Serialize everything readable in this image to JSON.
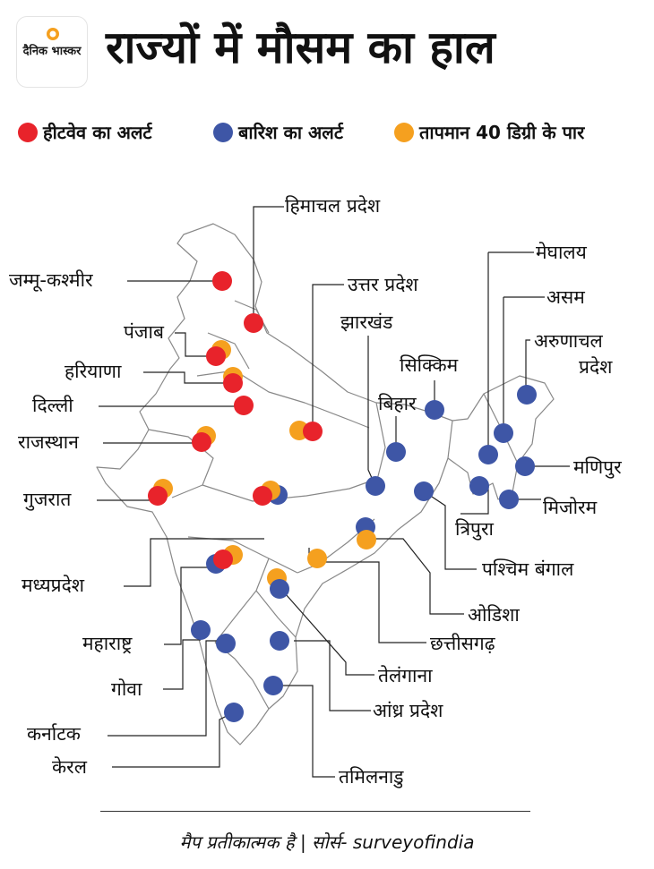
{
  "brand": {
    "logo_text": "दैनिक भास्कर"
  },
  "title": "राज्यों में मौसम का हाल",
  "colors": {
    "heatwave": "#e8232b",
    "rain": "#3e56a6",
    "temp40": "#f5a01f"
  },
  "legend": {
    "heatwave": "हीटवेव का अलर्ट",
    "rain": "बारिश का अलर्ट",
    "temp40": "तापमान 40 डिग्री के पार"
  },
  "states": {
    "himachal": {
      "name": "हिमाचल प्रदेश",
      "alerts": [
        "heatwave"
      ]
    },
    "jk": {
      "name": "जम्मू-कश्मीर",
      "alerts": [
        "heatwave"
      ]
    },
    "punjab": {
      "name": "पंजाब",
      "alerts": [
        "heatwave",
        "temp40"
      ]
    },
    "haryana": {
      "name": "हरियाणा",
      "alerts": [
        "heatwave",
        "temp40"
      ]
    },
    "delhi": {
      "name": "दिल्ली",
      "alerts": [
        "heatwave"
      ]
    },
    "rajasthan": {
      "name": "राजस्थान",
      "alerts": [
        "heatwave",
        "temp40"
      ]
    },
    "gujarat": {
      "name": "गुजरात",
      "alerts": [
        "heatwave",
        "temp40"
      ]
    },
    "mp": {
      "name": "मध्यप्रदेश",
      "alerts": [
        "heatwave",
        "temp40",
        "rain"
      ]
    },
    "maharashtra": {
      "name": "महाराष्ट्र",
      "alerts": [
        "heatwave",
        "temp40",
        "rain"
      ]
    },
    "goa": {
      "name": "गोवा",
      "alerts": [
        "rain"
      ]
    },
    "karnataka": {
      "name": "कर्नाटक",
      "alerts": [
        "rain"
      ]
    },
    "kerala": {
      "name": "केरल",
      "alerts": [
        "rain"
      ]
    },
    "up": {
      "name": "उत्तर प्रदेश",
      "alerts": [
        "heatwave",
        "temp40"
      ]
    },
    "jharkhand": {
      "name": "झारखंड",
      "alerts": [
        "rain"
      ]
    },
    "sikkim": {
      "name": "सिक्किम",
      "alerts": [
        "rain"
      ]
    },
    "bihar": {
      "name": "बिहार",
      "alerts": [
        "rain"
      ]
    },
    "meghalaya": {
      "name": "मेघालय",
      "alerts": [
        "rain"
      ]
    },
    "assam": {
      "name": "असम",
      "alerts": [
        "rain"
      ]
    },
    "arunachal": {
      "name": "अरुणाचल प्रदेश",
      "line1": "अरुणाचल",
      "line2": "प्रदेश",
      "alerts": [
        "rain"
      ]
    },
    "manipur": {
      "name": "मणिपुर",
      "alerts": [
        "rain"
      ]
    },
    "mizoram": {
      "name": "मिजोरम",
      "alerts": [
        "rain"
      ]
    },
    "tripura": {
      "name": "त्रिपुरा",
      "alerts": [
        "rain"
      ]
    },
    "westbengal": {
      "name": "पश्चिम बंगाल",
      "alerts": [
        "rain",
        "temp40"
      ]
    },
    "odisha": {
      "name": "ओडिशा",
      "alerts": [
        "temp40"
      ]
    },
    "chhattisgarh": {
      "name": "छत्तीसगढ़",
      "alerts": [
        "temp40",
        "rain"
      ]
    },
    "telangana": {
      "name": "तेलंगाना",
      "alerts": [
        "rain"
      ]
    },
    "andhra": {
      "name": "आंध्र प्रदेश",
      "alerts": [
        "rain"
      ]
    },
    "tamilnadu": {
      "name": "तमिलनाडु",
      "alerts": [
        "rain"
      ]
    }
  },
  "footer": "मैप प्रतीकात्मक है | सोर्स- surveyofindia"
}
